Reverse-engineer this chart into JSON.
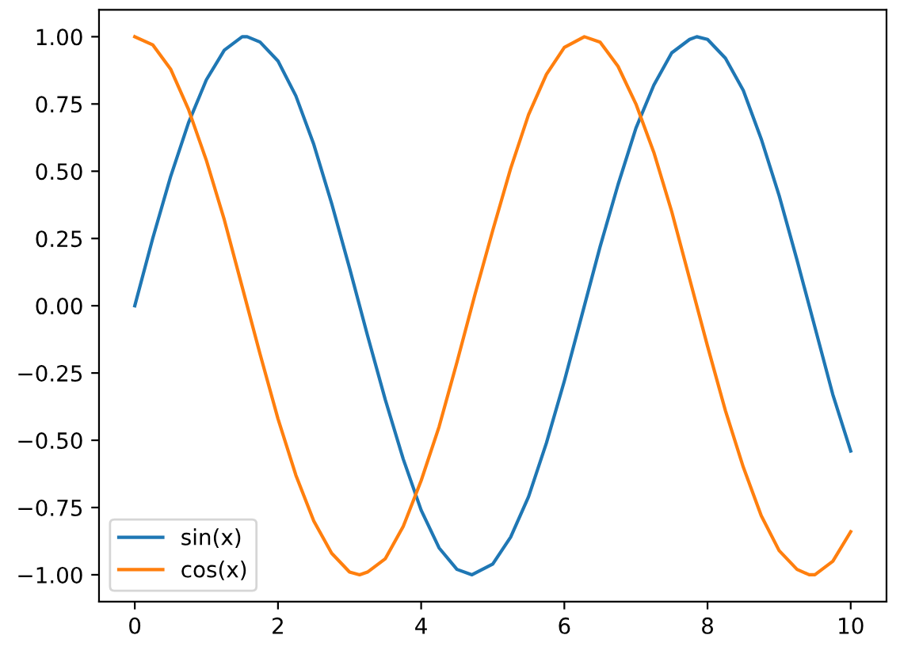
{
  "chart_data": {
    "type": "line",
    "series": [
      {
        "name": "sin(x)",
        "color": "#1f77b4",
        "x": [
          0,
          0.25,
          0.5,
          0.75,
          1,
          1.25,
          1.5,
          1.57,
          1.75,
          2,
          2.25,
          2.5,
          2.75,
          3,
          3.25,
          3.5,
          3.75,
          4,
          4.25,
          4.5,
          4.71,
          5,
          5.25,
          5.5,
          5.75,
          6,
          6.25,
          6.5,
          6.75,
          7,
          7.25,
          7.5,
          7.75,
          7.85,
          8,
          8.25,
          8.5,
          8.75,
          9,
          9.25,
          9.5,
          9.75,
          10
        ],
        "values": [
          0,
          0.25,
          0.48,
          0.68,
          0.84,
          0.95,
          1.0,
          1.0,
          0.98,
          0.91,
          0.78,
          0.6,
          0.38,
          0.14,
          -0.11,
          -0.35,
          -0.57,
          -0.76,
          -0.9,
          -0.98,
          -1.0,
          -0.96,
          -0.86,
          -0.71,
          -0.51,
          -0.28,
          -0.03,
          0.22,
          0.45,
          0.66,
          0.82,
          0.94,
          0.99,
          1.0,
          0.99,
          0.92,
          0.8,
          0.62,
          0.41,
          0.17,
          -0.08,
          -0.33,
          -0.54
        ]
      },
      {
        "name": "cos(x)",
        "color": "#ff7f0e",
        "x": [
          0,
          0.25,
          0.5,
          0.75,
          1,
          1.25,
          1.5,
          1.75,
          2,
          2.25,
          2.5,
          2.75,
          3,
          3.14,
          3.25,
          3.5,
          3.75,
          4,
          4.25,
          4.5,
          4.75,
          5,
          5.25,
          5.5,
          5.75,
          6,
          6.28,
          6.5,
          6.75,
          7,
          7.25,
          7.5,
          7.75,
          8,
          8.25,
          8.5,
          8.75,
          9,
          9.25,
          9.42,
          9.5,
          9.75,
          10
        ],
        "values": [
          1.0,
          0.97,
          0.88,
          0.73,
          0.54,
          0.32,
          0.07,
          -0.18,
          -0.42,
          -0.63,
          -0.8,
          -0.92,
          -0.99,
          -1.0,
          -0.99,
          -0.94,
          -0.82,
          -0.65,
          -0.45,
          -0.21,
          0.04,
          0.28,
          0.51,
          0.71,
          0.86,
          0.96,
          1.0,
          0.98,
          0.89,
          0.75,
          0.57,
          0.35,
          0.1,
          -0.15,
          -0.39,
          -0.6,
          -0.78,
          -0.91,
          -0.98,
          -1.0,
          -1.0,
          -0.95,
          -0.84
        ]
      }
    ],
    "xlim": [
      -0.5,
      10.5
    ],
    "xticks": [
      0,
      2,
      4,
      6,
      8,
      10
    ],
    "ylim": [
      -1.1,
      1.1
    ],
    "yticks": [
      {
        "value": -1,
        "label": "−1.00"
      },
      {
        "value": -0.75,
        "label": "−0.75"
      },
      {
        "value": -0.5,
        "label": "−0.50"
      },
      {
        "value": -0.25,
        "label": "−0.25"
      },
      {
        "value": 0,
        "label": "0.00"
      },
      {
        "value": 0.25,
        "label": "0.25"
      },
      {
        "value": 0.5,
        "label": "0.50"
      },
      {
        "value": 0.75,
        "label": "0.75"
      },
      {
        "value": 1,
        "label": "1.00"
      }
    ],
    "legend": "lower left"
  }
}
